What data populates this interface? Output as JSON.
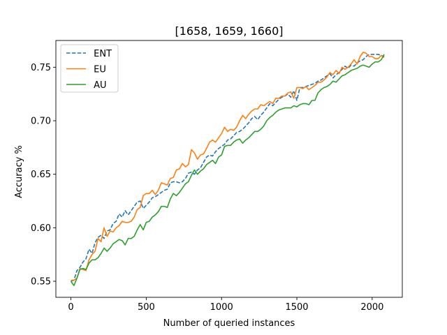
{
  "chart_data": {
    "type": "line",
    "title": "[1658, 1659, 1660]",
    "xlabel": "Number of queried instances",
    "ylabel": "Accuracy %",
    "xlim": [
      -100,
      2200
    ],
    "ylim": [
      0.535,
      0.775
    ],
    "xticks": [
      0,
      500,
      1000,
      1500,
      2000
    ],
    "xtick_labels": [
      "0",
      "500",
      "1000",
      "1500",
      "2000"
    ],
    "yticks": [
      0.55,
      0.6,
      0.65,
      0.7,
      0.75
    ],
    "ytick_labels": [
      "0.55",
      "0.60",
      "0.65",
      "0.70",
      "0.75"
    ],
    "grid": false,
    "legend_position": "top-left",
    "series": [
      {
        "name": " ENT",
        "color": "#1f77b4",
        "linestyle": "dashed",
        "x": [
          0,
          20,
          40,
          60,
          80,
          100,
          120,
          140,
          160,
          180,
          200,
          220,
          240,
          260,
          280,
          300,
          320,
          340,
          360,
          380,
          400,
          420,
          440,
          460,
          480,
          500,
          520,
          540,
          560,
          580,
          600,
          620,
          640,
          660,
          680,
          700,
          720,
          740,
          760,
          780,
          800,
          820,
          840,
          860,
          880,
          900,
          920,
          940,
          960,
          980,
          1000,
          1020,
          1040,
          1060,
          1080,
          1100,
          1120,
          1140,
          1160,
          1180,
          1200,
          1220,
          1240,
          1260,
          1280,
          1300,
          1320,
          1340,
          1360,
          1380,
          1400,
          1420,
          1440,
          1460,
          1480,
          1500,
          1520,
          1540,
          1560,
          1580,
          1600,
          1620,
          1640,
          1660,
          1680,
          1700,
          1720,
          1740,
          1760,
          1780,
          1800,
          1820,
          1840,
          1860,
          1880,
          1900,
          1920,
          1940,
          1960,
          1980,
          2000,
          2020,
          2040,
          2060,
          2080
        ],
        "values": [
          0.55,
          0.551,
          0.56,
          0.563,
          0.568,
          0.571,
          0.58,
          0.576,
          0.586,
          0.591,
          0.593,
          0.59,
          0.597,
          0.598,
          0.604,
          0.606,
          0.613,
          0.61,
          0.616,
          0.612,
          0.616,
          0.62,
          0.624,
          0.625,
          0.618,
          0.621,
          0.624,
          0.628,
          0.629,
          0.631,
          0.633,
          0.635,
          0.636,
          0.642,
          0.643,
          0.643,
          0.642,
          0.643,
          0.646,
          0.651,
          0.652,
          0.65,
          0.654,
          0.656,
          0.661,
          0.666,
          0.668,
          0.667,
          0.671,
          0.674,
          0.676,
          0.678,
          0.682,
          0.683,
          0.686,
          0.689,
          0.69,
          0.692,
          0.695,
          0.698,
          0.702,
          0.704,
          0.701,
          0.705,
          0.708,
          0.712,
          0.716,
          0.714,
          0.717,
          0.72,
          0.722,
          0.723,
          0.725,
          0.722,
          0.728,
          0.719,
          0.731,
          0.731,
          0.732,
          0.733,
          0.734,
          0.735,
          0.737,
          0.738,
          0.74,
          0.742,
          0.744,
          0.74,
          0.743,
          0.745,
          0.748,
          0.751,
          0.749,
          0.752,
          0.751,
          0.754,
          0.756,
          0.757,
          0.76,
          0.762,
          0.762,
          0.762,
          0.762,
          0.761,
          0.76
        ]
      },
      {
        "name": " EU",
        "color": "#ff7f0e",
        "linestyle": "solid",
        "x": [
          0,
          20,
          40,
          60,
          80,
          100,
          120,
          140,
          160,
          180,
          200,
          220,
          240,
          260,
          280,
          300,
          320,
          340,
          360,
          380,
          400,
          420,
          440,
          460,
          480,
          500,
          520,
          540,
          560,
          580,
          600,
          620,
          640,
          660,
          680,
          700,
          720,
          740,
          760,
          780,
          800,
          820,
          840,
          860,
          880,
          900,
          920,
          940,
          960,
          980,
          1000,
          1020,
          1040,
          1060,
          1080,
          1100,
          1120,
          1140,
          1160,
          1180,
          1200,
          1220,
          1240,
          1260,
          1280,
          1300,
          1320,
          1340,
          1360,
          1380,
          1400,
          1420,
          1440,
          1460,
          1480,
          1500,
          1520,
          1540,
          1560,
          1580,
          1600,
          1620,
          1640,
          1660,
          1680,
          1700,
          1720,
          1740,
          1760,
          1780,
          1800,
          1820,
          1840,
          1860,
          1880,
          1900,
          1920,
          1940,
          1960,
          1980,
          2000,
          2020,
          2040,
          2060,
          2080
        ],
        "values": [
          0.551,
          0.551,
          0.553,
          0.562,
          0.561,
          0.56,
          0.57,
          0.575,
          0.578,
          0.59,
          0.587,
          0.6,
          0.592,
          0.597,
          0.596,
          0.6,
          0.602,
          0.606,
          0.605,
          0.605,
          0.606,
          0.61,
          0.617,
          0.619,
          0.63,
          0.632,
          0.632,
          0.635,
          0.631,
          0.635,
          0.642,
          0.641,
          0.64,
          0.646,
          0.647,
          0.654,
          0.655,
          0.66,
          0.657,
          0.659,
          0.673,
          0.67,
          0.664,
          0.668,
          0.669,
          0.674,
          0.68,
          0.682,
          0.68,
          0.684,
          0.688,
          0.694,
          0.69,
          0.692,
          0.691,
          0.694,
          0.7,
          0.705,
          0.702,
          0.706,
          0.709,
          0.711,
          0.711,
          0.715,
          0.714,
          0.716,
          0.718,
          0.716,
          0.721,
          0.721,
          0.723,
          0.723,
          0.726,
          0.727,
          0.721,
          0.731,
          0.731,
          0.73,
          0.732,
          0.729,
          0.731,
          0.733,
          0.736,
          0.736,
          0.738,
          0.741,
          0.745,
          0.743,
          0.747,
          0.744,
          0.75,
          0.748,
          0.75,
          0.753,
          0.757,
          0.753,
          0.76,
          0.764,
          0.763,
          0.76,
          0.76,
          0.758,
          0.758,
          0.761,
          0.759
        ]
      },
      {
        "name": " AU",
        "color": "#2ca02c",
        "linestyle": "solid",
        "x": [
          0,
          20,
          40,
          60,
          80,
          100,
          120,
          140,
          160,
          180,
          200,
          220,
          240,
          260,
          280,
          300,
          320,
          340,
          360,
          380,
          400,
          420,
          440,
          460,
          480,
          500,
          520,
          540,
          560,
          580,
          600,
          620,
          640,
          660,
          680,
          700,
          720,
          740,
          760,
          780,
          800,
          820,
          840,
          860,
          880,
          900,
          920,
          940,
          960,
          980,
          1000,
          1020,
          1040,
          1060,
          1080,
          1100,
          1120,
          1140,
          1160,
          1180,
          1200,
          1220,
          1240,
          1260,
          1280,
          1300,
          1320,
          1340,
          1360,
          1380,
          1400,
          1420,
          1440,
          1460,
          1480,
          1500,
          1520,
          1540,
          1560,
          1580,
          1600,
          1620,
          1640,
          1660,
          1680,
          1700,
          1720,
          1740,
          1760,
          1780,
          1800,
          1820,
          1840,
          1860,
          1880,
          1900,
          1920,
          1940,
          1960,
          1980,
          2000,
          2020,
          2040,
          2060,
          2080
        ],
        "values": [
          0.55,
          0.546,
          0.553,
          0.561,
          0.562,
          0.561,
          0.567,
          0.57,
          0.57,
          0.572,
          0.576,
          0.581,
          0.578,
          0.581,
          0.585,
          0.587,
          0.589,
          0.588,
          0.584,
          0.59,
          0.59,
          0.592,
          0.598,
          0.603,
          0.598,
          0.605,
          0.606,
          0.61,
          0.612,
          0.615,
          0.62,
          0.62,
          0.619,
          0.627,
          0.632,
          0.63,
          0.633,
          0.637,
          0.641,
          0.643,
          0.649,
          0.654,
          0.65,
          0.653,
          0.655,
          0.659,
          0.661,
          0.663,
          0.66,
          0.666,
          0.668,
          0.676,
          0.677,
          0.677,
          0.68,
          0.682,
          0.683,
          0.679,
          0.682,
          0.684,
          0.687,
          0.69,
          0.69,
          0.692,
          0.695,
          0.7,
          0.703,
          0.705,
          0.708,
          0.71,
          0.711,
          0.712,
          0.712,
          0.712,
          0.714,
          0.713,
          0.715,
          0.716,
          0.716,
          0.715,
          0.719,
          0.719,
          0.726,
          0.729,
          0.731,
          0.732,
          0.734,
          0.737,
          0.736,
          0.739,
          0.742,
          0.743,
          0.745,
          0.747,
          0.748,
          0.749,
          0.751,
          0.752,
          0.751,
          0.75,
          0.753,
          0.755,
          0.755,
          0.757,
          0.762
        ]
      }
    ]
  }
}
